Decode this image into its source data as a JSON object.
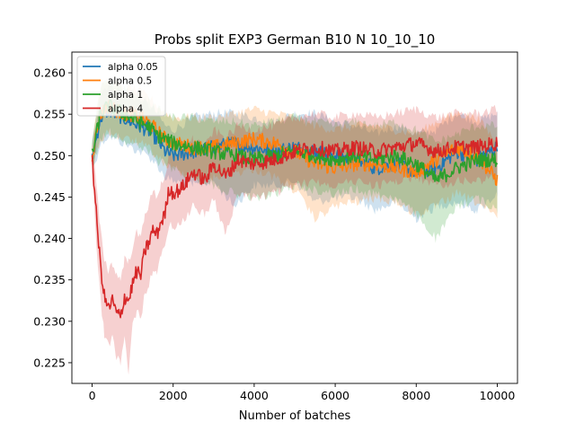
{
  "chart_data": {
    "type": "line",
    "title": "Probs split EXP3 German B10 N 10_10_10",
    "xlabel": "Number of batches",
    "ylabel": "",
    "xlim": [
      -500,
      10500
    ],
    "ylim": [
      0.2225,
      0.2625
    ],
    "xticks": [
      0,
      2000,
      4000,
      6000,
      8000,
      10000
    ],
    "xtick_labels": [
      "0",
      "2000",
      "4000",
      "6000",
      "8000",
      "10000"
    ],
    "yticks": [
      0.225,
      0.23,
      0.235,
      0.24,
      0.245,
      0.25,
      0.255,
      0.26
    ],
    "ytick_labels": [
      "0.225",
      "0.230",
      "0.235",
      "0.240",
      "0.245",
      "0.250",
      "0.255",
      "0.260"
    ],
    "grid": false,
    "legend_position": "top-left",
    "band": "shaded min-max range around each series",
    "series": [
      {
        "name": "alpha 0.05",
        "color": "#1f77b4",
        "x": [
          0,
          200,
          400,
          600,
          800,
          1000,
          1200,
          1400,
          1600,
          1800,
          2000,
          2500,
          3000,
          3500,
          4000,
          4500,
          5000,
          5500,
          6000,
          6500,
          7000,
          7500,
          8000,
          8500,
          9000,
          9500,
          10000
        ],
        "y": [
          0.2495,
          0.2545,
          0.2555,
          0.255,
          0.2545,
          0.254,
          0.2535,
          0.253,
          0.252,
          0.2505,
          0.25,
          0.2505,
          0.251,
          0.2515,
          0.251,
          0.2505,
          0.251,
          0.2505,
          0.25,
          0.2495,
          0.2485,
          0.249,
          0.248,
          0.2485,
          0.2505,
          0.2495,
          0.251
        ],
        "lower": [
          0.2485,
          0.252,
          0.253,
          0.2525,
          0.252,
          0.2515,
          0.251,
          0.2505,
          0.2495,
          0.248,
          0.2475,
          0.247,
          0.2475,
          0.2445,
          0.247,
          0.247,
          0.2475,
          0.245,
          0.2455,
          0.2455,
          0.244,
          0.245,
          0.243,
          0.2445,
          0.245,
          0.244,
          0.246
        ],
        "upper": [
          0.2505,
          0.257,
          0.258,
          0.2575,
          0.257,
          0.2565,
          0.256,
          0.2555,
          0.2545,
          0.253,
          0.2525,
          0.254,
          0.2545,
          0.2545,
          0.254,
          0.2535,
          0.2545,
          0.2545,
          0.2535,
          0.253,
          0.252,
          0.253,
          0.252,
          0.2525,
          0.2545,
          0.2535,
          0.2545
        ]
      },
      {
        "name": "alpha 0.5",
        "color": "#ff7f0e",
        "x": [
          0,
          200,
          400,
          600,
          800,
          1000,
          1200,
          1400,
          1600,
          1800,
          2000,
          2500,
          3000,
          3500,
          4000,
          4500,
          5000,
          5500,
          6000,
          6500,
          7000,
          7500,
          8000,
          8500,
          9000,
          9500,
          10000
        ],
        "y": [
          0.25,
          0.255,
          0.256,
          0.2555,
          0.255,
          0.255,
          0.2545,
          0.254,
          0.253,
          0.252,
          0.2515,
          0.251,
          0.251,
          0.2515,
          0.252,
          0.2515,
          0.2505,
          0.249,
          0.2485,
          0.249,
          0.249,
          0.2485,
          0.248,
          0.2495,
          0.251,
          0.25,
          0.247
        ],
        "lower": [
          0.249,
          0.2525,
          0.2535,
          0.253,
          0.2525,
          0.2525,
          0.252,
          0.2515,
          0.2505,
          0.2495,
          0.249,
          0.248,
          0.248,
          0.2485,
          0.249,
          0.248,
          0.2465,
          0.243,
          0.2445,
          0.245,
          0.2455,
          0.245,
          0.2435,
          0.2445,
          0.246,
          0.245,
          0.243
        ],
        "upper": [
          0.251,
          0.2575,
          0.2585,
          0.258,
          0.2575,
          0.2575,
          0.257,
          0.2565,
          0.2555,
          0.2545,
          0.254,
          0.254,
          0.254,
          0.2545,
          0.255,
          0.2545,
          0.254,
          0.253,
          0.2525,
          0.253,
          0.253,
          0.2525,
          0.252,
          0.2535,
          0.2545,
          0.254,
          0.251
        ]
      },
      {
        "name": "alpha 1",
        "color": "#2ca02c",
        "x": [
          0,
          200,
          400,
          600,
          800,
          1000,
          1200,
          1400,
          1600,
          1800,
          2000,
          2500,
          3000,
          3500,
          4000,
          4500,
          5000,
          5500,
          6000,
          6500,
          7000,
          7500,
          8000,
          8500,
          9000,
          9500,
          10000
        ],
        "y": [
          0.25,
          0.255,
          0.256,
          0.2555,
          0.255,
          0.2545,
          0.254,
          0.2535,
          0.2525,
          0.252,
          0.2515,
          0.251,
          0.2505,
          0.25,
          0.2495,
          0.25,
          0.2505,
          0.25,
          0.2495,
          0.25,
          0.2495,
          0.25,
          0.249,
          0.247,
          0.2485,
          0.2495,
          0.2495
        ],
        "lower": [
          0.249,
          0.2525,
          0.2535,
          0.253,
          0.2525,
          0.252,
          0.2515,
          0.251,
          0.25,
          0.2495,
          0.249,
          0.248,
          0.247,
          0.246,
          0.2455,
          0.246,
          0.247,
          0.2465,
          0.246,
          0.2465,
          0.246,
          0.2455,
          0.2435,
          0.2405,
          0.2445,
          0.2455,
          0.244
        ],
        "upper": [
          0.251,
          0.2575,
          0.2585,
          0.258,
          0.2575,
          0.257,
          0.2565,
          0.256,
          0.255,
          0.2545,
          0.254,
          0.254,
          0.2535,
          0.2535,
          0.253,
          0.2535,
          0.254,
          0.2535,
          0.253,
          0.2535,
          0.253,
          0.2535,
          0.2525,
          0.251,
          0.252,
          0.253,
          0.253
        ]
      },
      {
        "name": "alpha 4",
        "color": "#d62728",
        "x": [
          0,
          100,
          200,
          300,
          400,
          500,
          600,
          700,
          800,
          900,
          1000,
          1100,
          1200,
          1300,
          1400,
          1500,
          1600,
          1700,
          1800,
          1900,
          2000,
          2200,
          2500,
          2800,
          3000,
          3300,
          3600,
          4000,
          4500,
          5000,
          5500,
          6000,
          6500,
          7000,
          7500,
          8000,
          8500,
          9000,
          9500,
          10000
        ],
        "y": [
          0.25,
          0.243,
          0.237,
          0.233,
          0.2315,
          0.2325,
          0.231,
          0.2305,
          0.233,
          0.2325,
          0.2345,
          0.236,
          0.2355,
          0.2385,
          0.2395,
          0.241,
          0.2405,
          0.242,
          0.243,
          0.246,
          0.2455,
          0.246,
          0.248,
          0.247,
          0.249,
          0.2475,
          0.2495,
          0.249,
          0.2495,
          0.2505,
          0.251,
          0.2505,
          0.251,
          0.2505,
          0.251,
          0.2515,
          0.2505,
          0.251,
          0.251,
          0.2515
        ],
        "lower": [
          0.249,
          0.24,
          0.2335,
          0.229,
          0.2275,
          0.2285,
          0.2265,
          0.2255,
          0.2285,
          0.2245,
          0.23,
          0.232,
          0.231,
          0.234,
          0.235,
          0.237,
          0.236,
          0.2385,
          0.2395,
          0.2425,
          0.242,
          0.2425,
          0.2445,
          0.2435,
          0.2455,
          0.241,
          0.246,
          0.2455,
          0.246,
          0.247,
          0.2475,
          0.247,
          0.2475,
          0.247,
          0.2475,
          0.248,
          0.247,
          0.2475,
          0.2475,
          0.248
        ],
        "upper": [
          0.251,
          0.246,
          0.2405,
          0.237,
          0.2355,
          0.2365,
          0.235,
          0.2345,
          0.237,
          0.2365,
          0.2385,
          0.24,
          0.2395,
          0.2425,
          0.2435,
          0.245,
          0.2445,
          0.246,
          0.247,
          0.2495,
          0.249,
          0.2495,
          0.2515,
          0.2505,
          0.2525,
          0.2515,
          0.253,
          0.2525,
          0.253,
          0.254,
          0.2545,
          0.254,
          0.2545,
          0.254,
          0.2545,
          0.255,
          0.254,
          0.2545,
          0.2545,
          0.255
        ]
      }
    ]
  }
}
